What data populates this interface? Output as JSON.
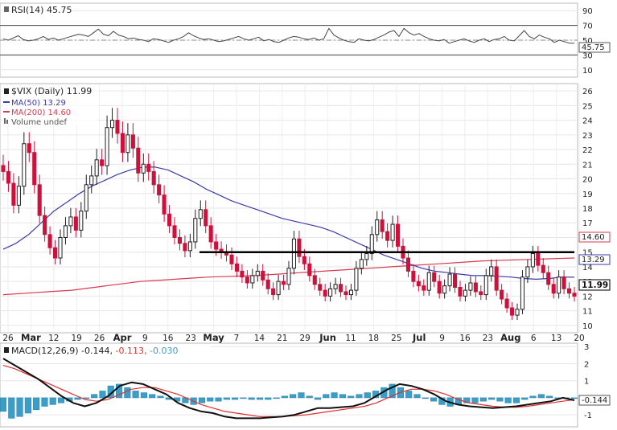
{
  "chart_data": {
    "type": "candlestick",
    "panels": {
      "rsi": {
        "label": "RSI(14) 45.75",
        "current": "45.75",
        "ylim": [
          0,
          100
        ],
        "ticks": [
          "90",
          "70",
          "50",
          "30",
          "10"
        ],
        "overbought": 70,
        "oversold": 30,
        "midline": 50,
        "series_name": "RSI(14)",
        "values": [
          52,
          50,
          53,
          56,
          51,
          49,
          50,
          52,
          55,
          51,
          53,
          50,
          52,
          54,
          56,
          58,
          57,
          55,
          60,
          65,
          58,
          56,
          62,
          57,
          55,
          52,
          53,
          51,
          50,
          48,
          52,
          51,
          49,
          47,
          50,
          52,
          55,
          60,
          56,
          53,
          51,
          52,
          50,
          48,
          49,
          51,
          53,
          55,
          52,
          50,
          52,
          54,
          49,
          51,
          48,
          47,
          50,
          53,
          55,
          54,
          52,
          51,
          53,
          50,
          52,
          66,
          57,
          53,
          50,
          48,
          47,
          52,
          50,
          49,
          51,
          54,
          57,
          61,
          63,
          55,
          66,
          60,
          57,
          59,
          55,
          52,
          50,
          49,
          51,
          46,
          48,
          50,
          52,
          49,
          47,
          50,
          52,
          48,
          51,
          52,
          55,
          50,
          49,
          56,
          63,
          55,
          52,
          57,
          54,
          52,
          47,
          50,
          48,
          46,
          46
        ]
      },
      "price": {
        "title": "$VIX (Daily) 11.99",
        "legend": [
          {
            "label": "MA(50) 13.29",
            "color": "#3b3aa8"
          },
          {
            "label": "MA(200) 14.60",
            "color": "#d93a50"
          },
          {
            "label": "Volume undef",
            "color": "#666666"
          }
        ],
        "ylim": [
          9.5,
          26.5
        ],
        "ticks": [
          "26",
          "25",
          "24",
          "23",
          "22",
          "21",
          "20",
          "19",
          "18",
          "17",
          "16",
          "15",
          "14",
          "13",
          "12",
          "11",
          "10"
        ],
        "last_close": "11.99",
        "ma50_last": "13.29",
        "ma200_last": "14.60",
        "resistance_level": 15,
        "up_color": "#1f1f1f",
        "down_color": "#d0103a",
        "closes": [
          20.5,
          19.7,
          18.2,
          19.5,
          22.4,
          21.8,
          19.6,
          17.5,
          16.2,
          15.3,
          14.6,
          16.0,
          16.8,
          17.4,
          16.5,
          17.8,
          19.6,
          20.2,
          21.3,
          20.9,
          23.5,
          24.0,
          23.1,
          21.8,
          23.0,
          22.1,
          20.4,
          21.0,
          20.5,
          19.6,
          18.9,
          17.6,
          16.8,
          16.0,
          15.6,
          15.1,
          15.7,
          17.3,
          17.9,
          16.8,
          15.7,
          15.2,
          15.0,
          14.8,
          14.2,
          13.7,
          13.3,
          12.9,
          13.4,
          13.7,
          13.1,
          12.5,
          12.1,
          13.0,
          12.8,
          13.9,
          15.9,
          14.7,
          14.2,
          13.4,
          12.8,
          12.4,
          12.0,
          12.5,
          12.8,
          12.3,
          12.1,
          12.4,
          13.9,
          14.5,
          14.9,
          16.2,
          17.2,
          16.4,
          15.8,
          16.9,
          15.4,
          14.6,
          13.7,
          13.0,
          12.7,
          12.4,
          13.6,
          13.0,
          12.2,
          12.7,
          13.5,
          12.6,
          12.0,
          12.4,
          12.9,
          12.3,
          12.1,
          13.4,
          14.0,
          12.4,
          11.8,
          11.2,
          10.7,
          11.1,
          13.3,
          14.0,
          14.9,
          14.1,
          13.6,
          12.8,
          12.2,
          13.3,
          12.5,
          12.2,
          11.99
        ],
        "ma50": [
          15.2,
          15.6,
          16.2,
          17.0,
          17.8,
          18.4,
          19.0,
          19.5,
          19.9,
          20.3,
          20.6,
          20.8,
          20.8,
          20.6,
          20.2,
          19.8,
          19.3,
          18.9,
          18.5,
          18.2,
          17.9,
          17.6,
          17.3,
          17.1,
          16.9,
          16.7,
          16.4,
          16.0,
          15.6,
          15.2,
          14.8,
          14.5,
          14.2,
          13.9,
          13.7,
          13.6,
          13.5,
          13.4,
          13.4,
          13.35,
          13.3,
          13.2,
          13.15,
          13.2,
          13.3,
          13.29
        ],
        "ma200": [
          12.1,
          12.2,
          12.3,
          12.4,
          12.6,
          12.8,
          13.0,
          13.1,
          13.2,
          13.3,
          13.35,
          13.4,
          13.5,
          13.6,
          13.7,
          13.8,
          13.9,
          14.0,
          14.1,
          14.2,
          14.3,
          14.4,
          14.45,
          14.5,
          14.55,
          14.6
        ]
      },
      "macd": {
        "label": "MACD(12,26,9) -0.144, -0.113, -0.030",
        "label_parts": {
          "name": "MACD(12,26,9)",
          "macd": "-0.144,",
          "signal": "-0.113,",
          "hist": "-0.030"
        },
        "current": "-0.144",
        "ylim": [
          -1.7,
          3.2
        ],
        "ticks": [
          "3",
          "2",
          "1",
          "0",
          "-1"
        ],
        "macd_color": "#111111",
        "signal_color": "#e23030",
        "hist_color": "#3a9fc8",
        "macd": [
          2.3,
          1.9,
          1.5,
          1.1,
          0.6,
          0.1,
          -0.3,
          -0.5,
          -0.3,
          0.1,
          0.7,
          0.9,
          0.8,
          0.5,
          0.2,
          -0.3,
          -0.6,
          -0.8,
          -0.9,
          -1.1,
          -1.2,
          -1.2,
          -1.2,
          -1.15,
          -1.1,
          -1.0,
          -0.8,
          -0.6,
          -0.6,
          -0.55,
          -0.5,
          -0.3,
          0.1,
          0.5,
          0.8,
          0.7,
          0.5,
          0.2,
          -0.2,
          -0.4,
          -0.5,
          -0.55,
          -0.6,
          -0.55,
          -0.5,
          -0.4,
          -0.3,
          -0.2,
          0.0,
          -0.144
        ],
        "signal": [
          1.9,
          1.7,
          1.4,
          1.1,
          0.8,
          0.5,
          0.2,
          -0.1,
          -0.2,
          -0.1,
          0.2,
          0.5,
          0.6,
          0.6,
          0.4,
          0.2,
          -0.1,
          -0.4,
          -0.6,
          -0.8,
          -0.9,
          -1.0,
          -1.1,
          -1.1,
          -1.1,
          -1.05,
          -1.0,
          -0.9,
          -0.8,
          -0.7,
          -0.6,
          -0.5,
          -0.3,
          0.0,
          0.3,
          0.5,
          0.5,
          0.4,
          0.2,
          -0.1,
          -0.3,
          -0.4,
          -0.5,
          -0.55,
          -0.55,
          -0.5,
          -0.4,
          -0.3,
          -0.2,
          -0.113
        ],
        "hist": [
          -0.8,
          -1.2,
          -1.1,
          -0.9,
          -0.7,
          -0.5,
          -0.4,
          -0.3,
          -0.2,
          -0.1,
          0.0,
          0.2,
          0.4,
          0.7,
          0.8,
          0.6,
          0.4,
          0.3,
          0.2,
          0.1,
          -0.1,
          -0.2,
          -0.3,
          -0.4,
          -0.3,
          -0.2,
          -0.2,
          -0.1,
          -0.1,
          0.0,
          -0.1,
          -0.1,
          -0.1,
          0.0,
          0.1,
          0.2,
          0.3,
          0.1,
          -0.1,
          0.2,
          0.3,
          0.2,
          0.1,
          0.2,
          0.3,
          0.4,
          0.6,
          0.8,
          0.6,
          0.4,
          0.2,
          0.0,
          -0.2,
          -0.4,
          -0.5,
          -0.4,
          -0.3,
          -0.3,
          -0.2,
          -0.1,
          -0.2,
          -0.3,
          -0.3,
          -0.1,
          0.1,
          0.2,
          0.1,
          0.0,
          0.0,
          -0.03
        ]
      }
    },
    "x_ticks": [
      "26",
      "Mar",
      "12",
      "19",
      "26",
      "Apr",
      "9",
      "16",
      "23",
      "May",
      "7",
      "14",
      "21",
      "29",
      "Jun",
      "11",
      "18",
      "25",
      "Jul",
      "9",
      "16",
      "23",
      "Aug",
      "6",
      "13",
      "20"
    ]
  }
}
